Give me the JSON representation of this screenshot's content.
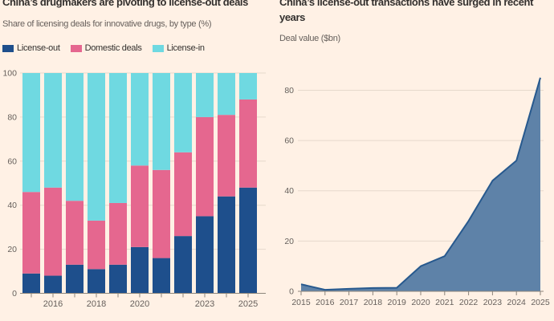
{
  "colors": {
    "background": "#fff1e5",
    "title_text": "#33302e",
    "muted_text": "#66605c",
    "gridline": "#e6d9cc",
    "axis": "#8c857b"
  },
  "chart_data": [
    {
      "type": "bar",
      "subtype": "stacked_percentage",
      "title": "China’s drugmakers are pivoting to license-out deals",
      "subtitle": "Share of licensing deals for innovative drugs, by type (%)",
      "categories": [
        "2015",
        "2016",
        "2017",
        "2018",
        "2019",
        "2020",
        "2021",
        "2022",
        "2023",
        "2024",
        "2025"
      ],
      "series": [
        {
          "name": "License-out",
          "color": "#1e4f8c",
          "values": [
            9,
            8,
            13,
            11,
            13,
            21,
            16,
            26,
            35,
            44,
            48
          ]
        },
        {
          "name": "Domestic deals",
          "color": "#e5678f",
          "values": [
            37,
            40,
            29,
            22,
            28,
            37,
            40,
            38,
            45,
            37,
            40
          ]
        },
        {
          "name": "License-in",
          "color": "#6fd9e1",
          "values": [
            54,
            52,
            58,
            67,
            59,
            42,
            44,
            36,
            20,
            19,
            12
          ]
        }
      ],
      "ylim": [
        0,
        100
      ],
      "yticks": [
        0,
        20,
        40,
        60,
        80,
        100
      ],
      "xtick_labels": {
        "1": "2016",
        "3": "2018",
        "5": "2020",
        "8": "2023",
        "10": "2025"
      },
      "grid": true,
      "legend_position": "top"
    },
    {
      "type": "area",
      "title": "China’s license-out transactions have surged in recent years",
      "subtitle": "Deal value ($bn)",
      "x": [
        "2015",
        "2016",
        "2017",
        "2018",
        "2019",
        "2020",
        "2021",
        "2022",
        "2023",
        "2024",
        "2025"
      ],
      "values": [
        2.8,
        0.6,
        1,
        1.3,
        1.4,
        10,
        14,
        28,
        44,
        52,
        85
      ],
      "ylim": [
        0,
        85
      ],
      "yticks": [
        0,
        20,
        40,
        60,
        80
      ],
      "fill_color": "#5e82a8",
      "line_color": "#27598e",
      "grid": true,
      "legend_position": "none"
    }
  ]
}
